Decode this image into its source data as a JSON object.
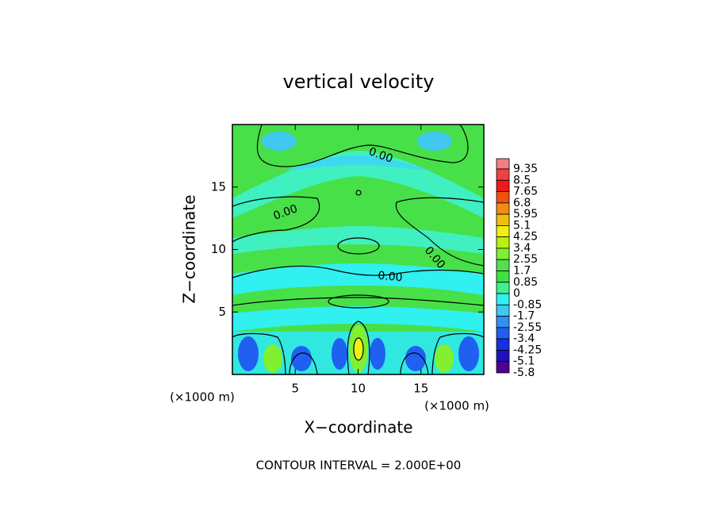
{
  "chart_data": {
    "type": "contour",
    "title": "vertical velocity",
    "x_label": "X−coordinate",
    "y_label": "Z−coordinate",
    "x_unit": "(×1000 m)",
    "y_unit": "(×1000 m)",
    "xlim": [
      0,
      20
    ],
    "ylim": [
      0,
      20
    ],
    "xticks": [
      5,
      10,
      15
    ],
    "yticks": [
      5,
      10,
      15
    ],
    "contour_labels": [
      "0.00",
      "0.00",
      "0.00",
      "0.00"
    ],
    "contour_interval": "CONTOUR INTERVAL = 2.000E+00",
    "colorbar": {
      "levels": [
        9.35,
        8.5,
        7.65,
        6.8,
        5.95,
        5.1,
        4.25,
        3.4,
        2.55,
        1.7,
        0.85,
        0,
        -0.85,
        -1.7,
        -2.55,
        -3.4,
        -4.25,
        -5.1,
        -5.8
      ],
      "colors": [
        "#f08080",
        "#f04040",
        "#f01818",
        "#f05010",
        "#f08c10",
        "#f0c010",
        "#f0f010",
        "#b8f010",
        "#80f030",
        "#50e050",
        "#40e040",
        "#40f090",
        "#30f0f0",
        "#40c8f0",
        "#3090f0",
        "#2060f0",
        "#1830e0",
        "#2010c0",
        "#500090"
      ]
    }
  }
}
